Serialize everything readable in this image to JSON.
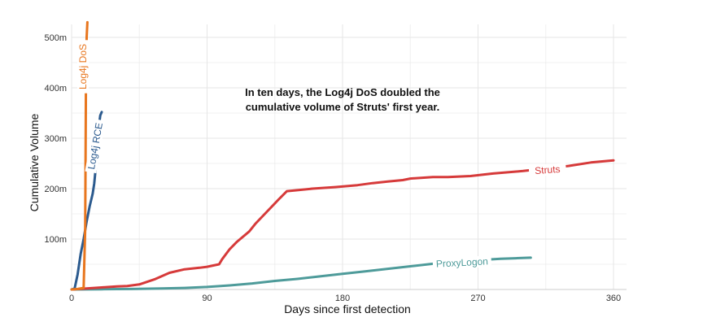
{
  "chart_data": {
    "type": "line",
    "xlabel": "Days since first detection",
    "ylabel": "Cumulative Volume",
    "xlim": [
      0,
      370
    ],
    "ylim": [
      0,
      530
    ],
    "x_ticks": [
      0,
      90,
      180,
      270,
      360
    ],
    "x_tick_labels": [
      "0",
      "90",
      "180",
      "270",
      "360"
    ],
    "y_ticks": [
      100,
      200,
      300,
      400,
      500
    ],
    "y_tick_labels": [
      "100m",
      "200m",
      "300m",
      "400m",
      "500m"
    ],
    "grid": true,
    "annotation": "In ten days, the Log4j DoS doubled the cumulative volume of Struts' first year.",
    "annotation_lines": [
      "In ten days, the Log4j DoS doubled the",
      "cumulative volume of Struts' first year."
    ],
    "series": [
      {
        "name": "Log4j DoS",
        "color": "#e8761e",
        "x": [
          0,
          4,
          8,
          9,
          9.5,
          10,
          10.5
        ],
        "y": [
          0,
          1,
          3,
          120,
          400,
          500,
          530
        ]
      },
      {
        "name": "Log4j RCE",
        "color": "#2b5a8e",
        "x": [
          0,
          2,
          4,
          6,
          8,
          10,
          12,
          14,
          15,
          16,
          17,
          18,
          19,
          20
        ],
        "y": [
          0,
          2,
          30,
          70,
          100,
          135,
          165,
          190,
          210,
          240,
          280,
          320,
          345,
          352
        ]
      },
      {
        "name": "Struts",
        "color": "#d63a3a",
        "x": [
          0,
          20,
          30,
          37,
          45,
          55,
          65,
          75,
          85,
          90,
          98,
          100,
          105,
          110,
          118,
          122,
          130,
          138,
          143,
          150,
          160,
          175,
          190,
          200,
          210,
          220,
          225,
          235,
          240,
          250,
          265,
          280,
          300,
          315,
          330,
          345,
          360
        ],
        "y": [
          0,
          4,
          6,
          7,
          10,
          20,
          33,
          40,
          43,
          45,
          50,
          60,
          80,
          95,
          115,
          130,
          155,
          180,
          195,
          197,
          200,
          203,
          207,
          211,
          214,
          217,
          220,
          222,
          223,
          223,
          225,
          230,
          235,
          240,
          245,
          252,
          256
        ]
      },
      {
        "name": "ProxyLogon",
        "color": "#4e9b9a",
        "x": [
          0,
          20,
          40,
          60,
          75,
          90,
          105,
          120,
          135,
          150,
          165,
          180,
          195,
          210,
          225,
          240,
          260,
          275,
          285,
          295,
          305
        ],
        "y": [
          0,
          0.5,
          1,
          2,
          3,
          5,
          8,
          12,
          17,
          21,
          26,
          31,
          36,
          41,
          46,
          51,
          56,
          59,
          61,
          62,
          63
        ]
      }
    ]
  }
}
